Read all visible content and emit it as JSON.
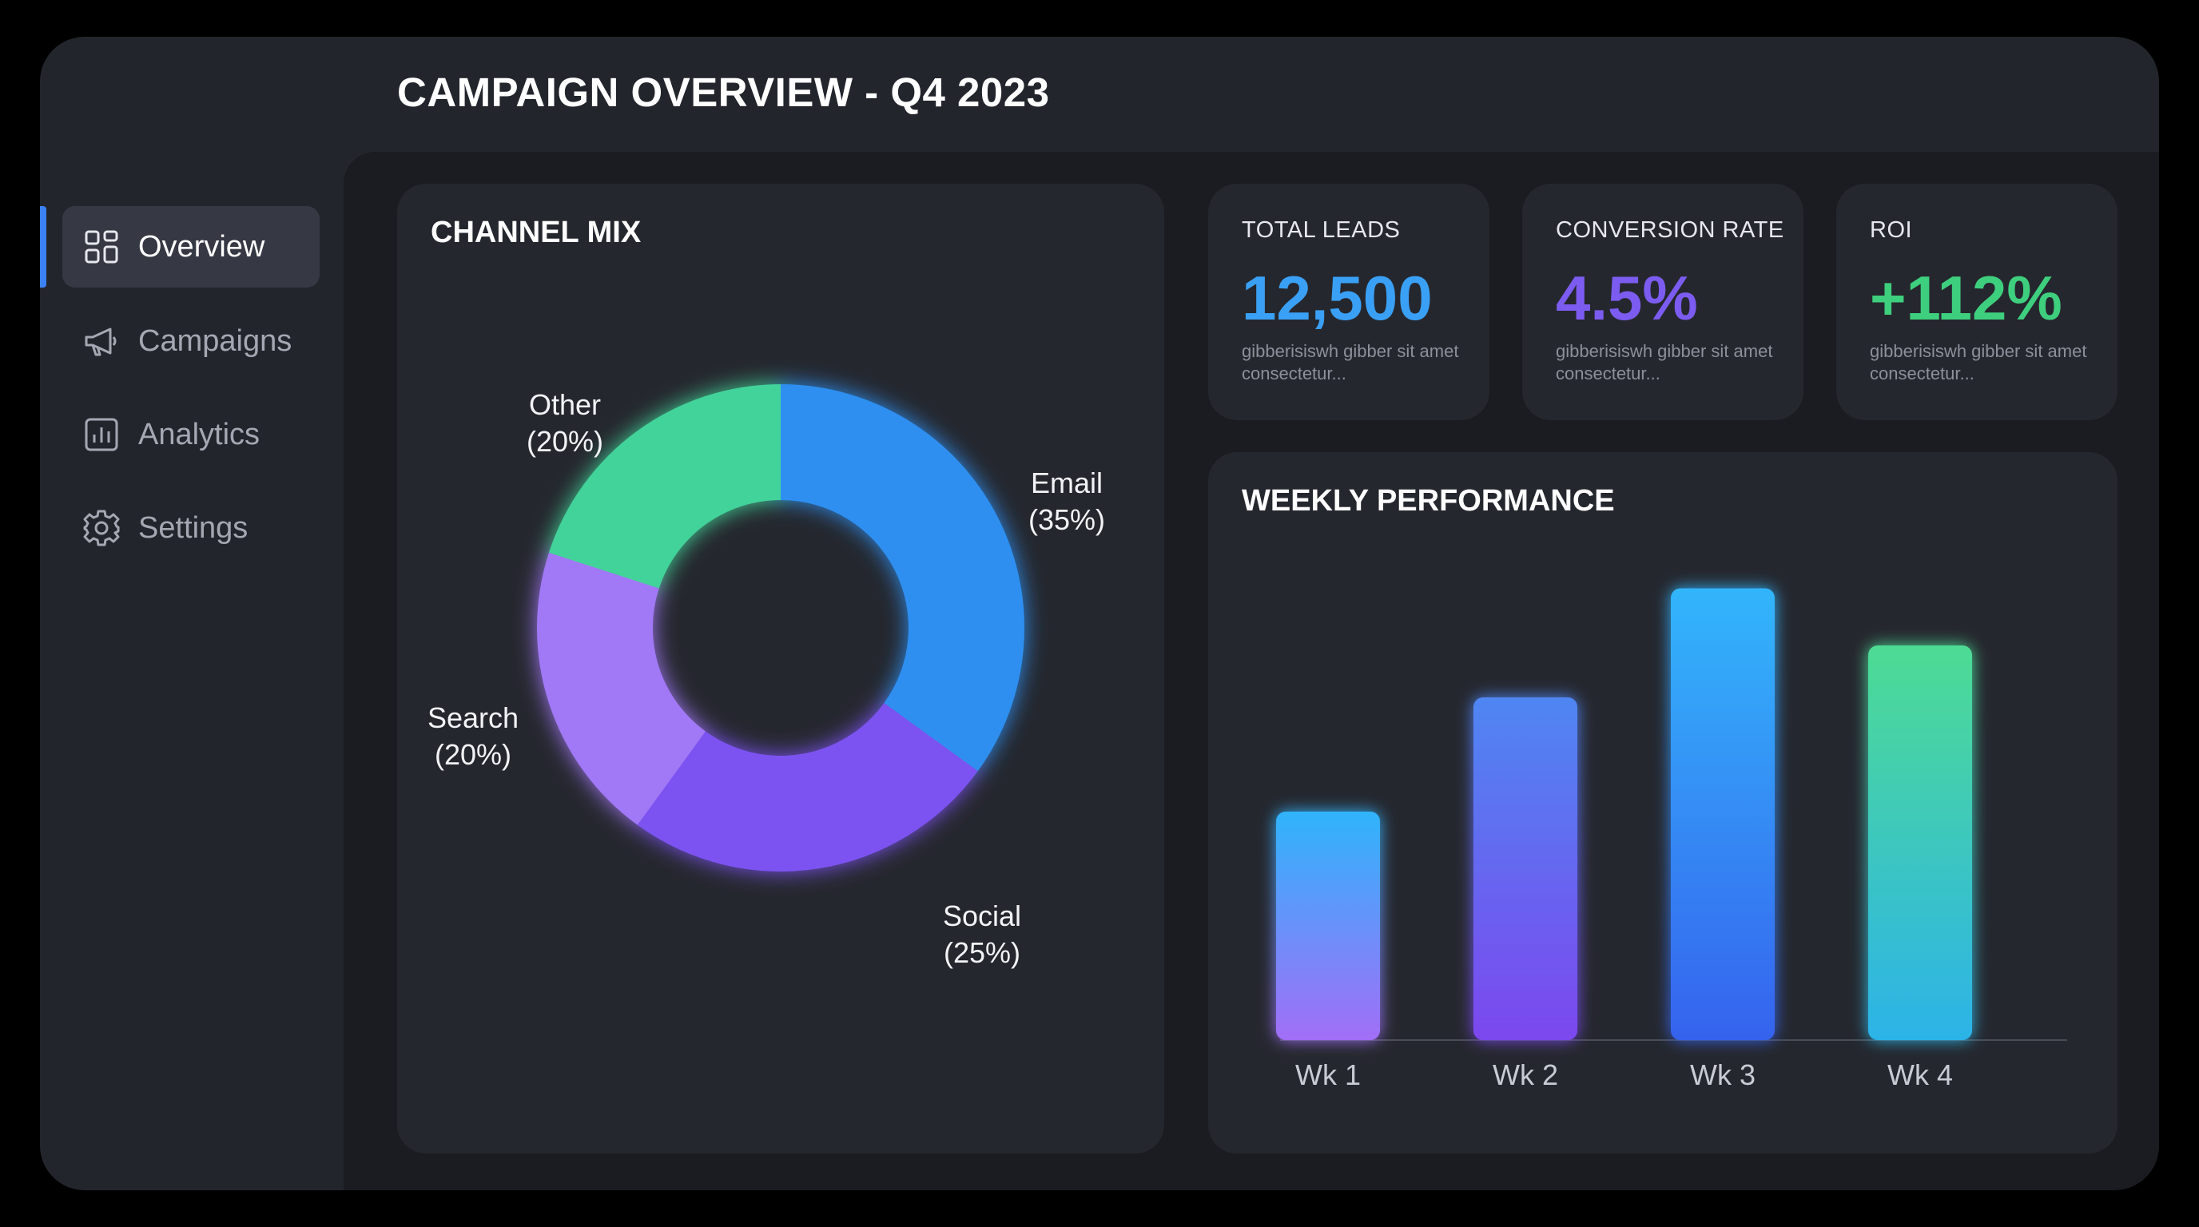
{
  "header": {
    "title": "CAMPAIGN OVERVIEW - Q4 2023"
  },
  "sidebar": {
    "items": [
      {
        "label": "Overview",
        "icon": "grid-icon",
        "active": true
      },
      {
        "label": "Campaigns",
        "icon": "megaphone-icon",
        "active": false
      },
      {
        "label": "Analytics",
        "icon": "bar-chart-icon",
        "active": false
      },
      {
        "label": "Settings",
        "icon": "gear-icon",
        "active": false
      }
    ],
    "accent": "#3b82f6"
  },
  "kpis": [
    {
      "label": "TOTAL LEADS",
      "value": "12,500",
      "desc": "gibberisiswh gibber sit amet consectetur...",
      "color": "#3aa0f5"
    },
    {
      "label": "CONVERSION RATE",
      "value": "4.5%",
      "desc": "gibberisiswh gibber sit amet consectetur...",
      "color": "#7c5cf0"
    },
    {
      "label": "ROI",
      "value": "+112%",
      "desc": "gibberisiswh gibber sit amet consectetur...",
      "color": "#3ecf7e"
    }
  ],
  "chart_data": [
    {
      "type": "pie",
      "title": "CHANNEL MIX",
      "categories": [
        "Email",
        "Social",
        "Search",
        "Other"
      ],
      "values": [
        35,
        25,
        20,
        20
      ],
      "labels": [
        "(35%)",
        "(25%)",
        "(20%)",
        "(20%)"
      ],
      "colors": [
        "#2f8ff0",
        "#7b52f0",
        "#a178f5",
        "#43d39a"
      ],
      "donut": true
    },
    {
      "type": "bar",
      "title": "WEEKLY PERFORMANCE",
      "categories": [
        "Wk 1",
        "Wk 2",
        "Wk 3",
        "Wk 4"
      ],
      "values": [
        44,
        66,
        87,
        76
      ],
      "ylim": [
        0,
        100
      ],
      "grid": false,
      "colors": [
        [
          "#2fb4fb",
          "#a26ef7"
        ],
        [
          "#4f86f2",
          "#7c48ee"
        ],
        [
          "#33b5fb",
          "#3563ee"
        ],
        [
          "#4edb94",
          "#2cb3e8"
        ]
      ]
    }
  ]
}
